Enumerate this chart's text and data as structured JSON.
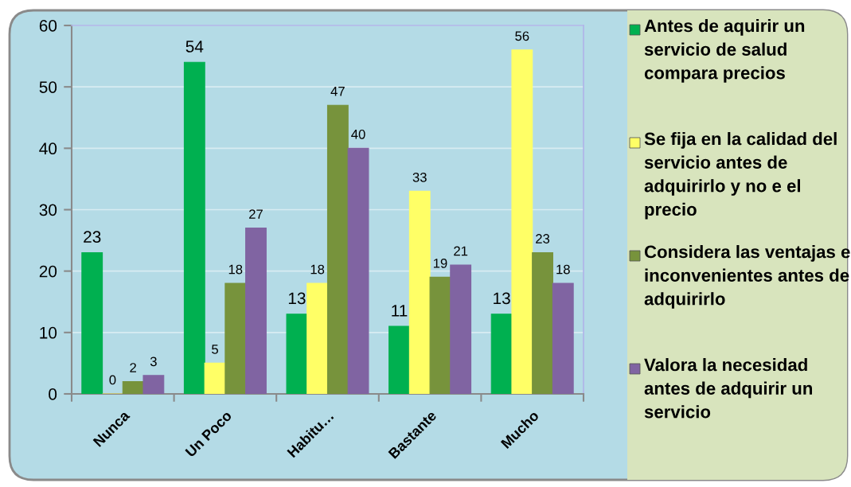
{
  "chart_data": {
    "type": "bar",
    "categories": [
      "Nunca",
      "Un Poco",
      "Habitu…",
      "Bastante",
      "Mucho"
    ],
    "series": [
      {
        "name": "Antes de aquirir un servicio de salud compara precios",
        "color": "#00b050",
        "values": [
          23,
          54,
          13,
          11,
          13
        ]
      },
      {
        "name": "Se fija en la calidad del servicio antes de adquirirlo y no e el precio",
        "color": "#ffff66",
        "values": [
          0,
          5,
          18,
          33,
          56
        ]
      },
      {
        "name": "Considera las ventajas e inconvenientes antes de adquirirlo",
        "color": "#77933c",
        "values": [
          2,
          18,
          47,
          19,
          23
        ]
      },
      {
        "name": "Valora la necesidad antes de adquirir un servicio",
        "color": "#8064a2",
        "values": [
          3,
          27,
          40,
          21,
          18
        ]
      }
    ],
    "ylim": [
      0,
      60
    ],
    "yticks": [
      0,
      10,
      20,
      30,
      40,
      50,
      60
    ],
    "grid": "y",
    "legend": "right",
    "data_labels": true
  }
}
